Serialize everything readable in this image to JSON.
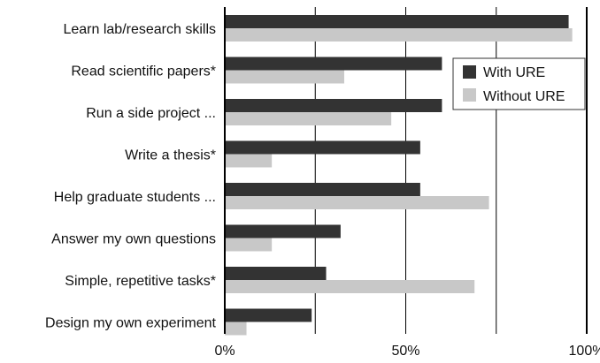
{
  "chart_data": {
    "type": "bar",
    "orientation": "horizontal",
    "categories": [
      "Learn lab/research skills",
      "Read scientific papers*",
      "Run a side project ...",
      "Write a thesis*",
      "Help graduate students ...",
      "Answer my own questions",
      "Simple, repetitive tasks*",
      "Design my own experiment"
    ],
    "series": [
      {
        "name": "With URE",
        "color": "#333333",
        "values": [
          95,
          60,
          60,
          54,
          54,
          32,
          28,
          24
        ]
      },
      {
        "name": "Without URE",
        "color": "#c8c8c8",
        "values": [
          96,
          33,
          46,
          13,
          73,
          13,
          69,
          6
        ]
      }
    ],
    "xlim": [
      0,
      100
    ],
    "xticks": [
      "0%",
      "50%",
      "100%"
    ],
    "grid": "vertical lines at 25% intervals",
    "legend_position": "top-right"
  }
}
